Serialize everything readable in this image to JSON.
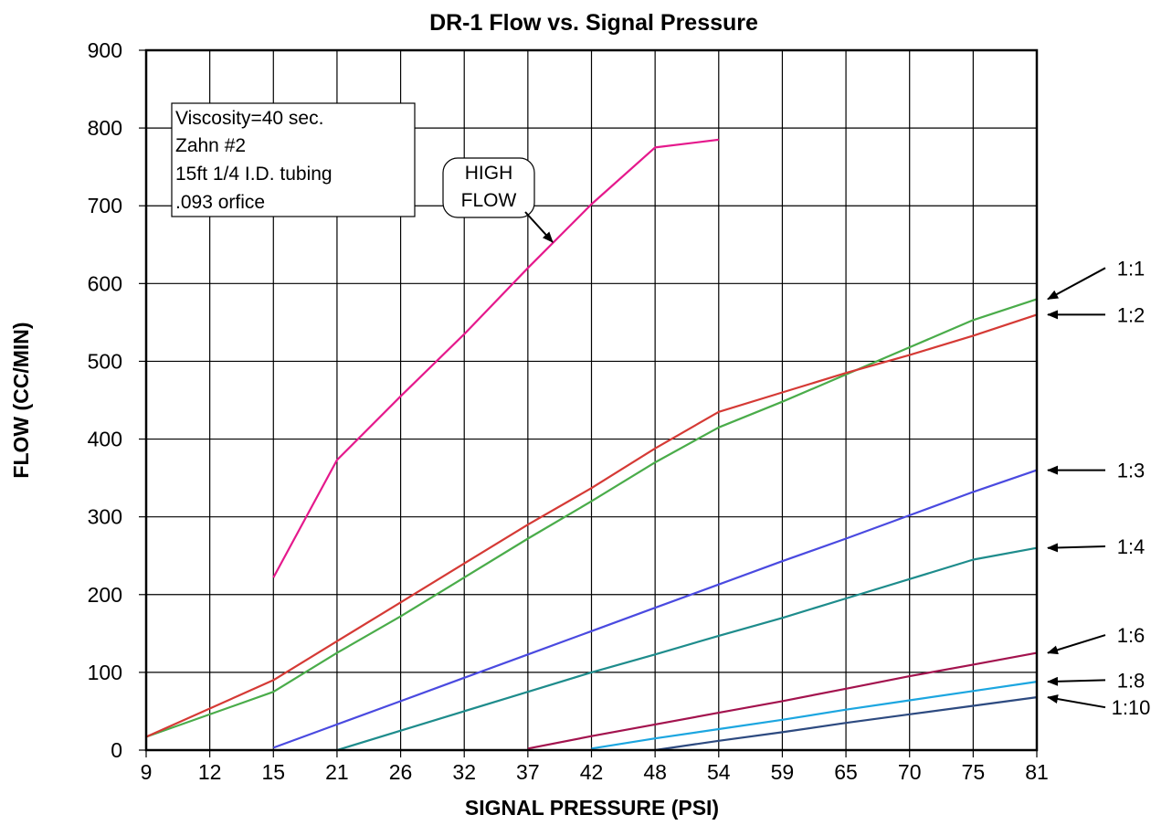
{
  "chart_data": {
    "type": "line",
    "title": "DR-1 Flow vs. Signal Pressure",
    "xlabel": "SIGNAL PRESSURE (PSI)",
    "ylabel": "FLOW (CC/MIN)",
    "x_ticks": [
      "9",
      "12",
      "15",
      "21",
      "26",
      "32",
      "37",
      "42",
      "48",
      "54",
      "59",
      "65",
      "70",
      "75",
      "81"
    ],
    "ylim": [
      0,
      900
    ],
    "y_ticks": [
      "0",
      "100",
      "200",
      "300",
      "400",
      "500",
      "600",
      "700",
      "800",
      "900"
    ],
    "grid": true,
    "annotation_box": [
      "Viscosity=40 sec.",
      "Zahn #2",
      "15ft 1/4 I.D. tubing",
      ".093 orfice"
    ],
    "high_flow_label": [
      "HIGH",
      "FLOW"
    ],
    "series": [
      {
        "name": "HIGH FLOW",
        "color": "#e5198c",
        "points": [
          [
            "15",
            222
          ],
          [
            "21",
            373
          ],
          [
            "26",
            455
          ],
          [
            "32",
            535
          ],
          [
            "37",
            620
          ],
          [
            "42",
            702
          ],
          [
            "48",
            775
          ],
          [
            "54",
            785
          ]
        ]
      },
      {
        "name": "1:1",
        "color": "#4aac4a",
        "points": [
          [
            "9",
            17
          ],
          [
            "15",
            75
          ],
          [
            "21",
            125
          ],
          [
            "26",
            172
          ],
          [
            "32",
            222
          ],
          [
            "37",
            272
          ],
          [
            "42",
            320
          ],
          [
            "48",
            370
          ],
          [
            "54",
            415
          ],
          [
            "59",
            448
          ],
          [
            "65",
            483
          ],
          [
            "70",
            518
          ],
          [
            "75",
            553
          ],
          [
            "81",
            580
          ]
        ]
      },
      {
        "name": "1:2",
        "color": "#d53a35",
        "points": [
          [
            "9",
            17
          ],
          [
            "15",
            90
          ],
          [
            "21",
            140
          ],
          [
            "26",
            190
          ],
          [
            "32",
            240
          ],
          [
            "37",
            290
          ],
          [
            "42",
            337
          ],
          [
            "48",
            388
          ],
          [
            "54",
            435
          ],
          [
            "59",
            460
          ],
          [
            "65",
            485
          ],
          [
            "70",
            508
          ],
          [
            "75",
            533
          ],
          [
            "81",
            560
          ]
        ]
      },
      {
        "name": "1:3",
        "color": "#4a4ae0",
        "points": [
          [
            "15",
            3
          ],
          [
            "21",
            33
          ],
          [
            "26",
            63
          ],
          [
            "32",
            93
          ],
          [
            "37",
            123
          ],
          [
            "42",
            153
          ],
          [
            "48",
            183
          ],
          [
            "54",
            213
          ],
          [
            "59",
            243
          ],
          [
            "65",
            272
          ],
          [
            "70",
            302
          ],
          [
            "75",
            332
          ],
          [
            "81",
            360
          ]
        ]
      },
      {
        "name": "1:4",
        "color": "#1e8c8c",
        "points": [
          [
            "21",
            0
          ],
          [
            "26",
            25
          ],
          [
            "32",
            50
          ],
          [
            "37",
            75
          ],
          [
            "42",
            100
          ],
          [
            "48",
            123
          ],
          [
            "54",
            147
          ],
          [
            "59",
            170
          ],
          [
            "65",
            195
          ],
          [
            "70",
            220
          ],
          [
            "75",
            245
          ],
          [
            "81",
            260
          ]
        ]
      },
      {
        "name": "1:6",
        "color": "#a3134e",
        "points": [
          [
            "37",
            2
          ],
          [
            "42",
            18
          ],
          [
            "48",
            33
          ],
          [
            "54",
            48
          ],
          [
            "59",
            63
          ],
          [
            "65",
            79
          ],
          [
            "70",
            95
          ],
          [
            "75",
            110
          ],
          [
            "81",
            125
          ]
        ]
      },
      {
        "name": "1:8",
        "color": "#1ca6e0",
        "points": [
          [
            "42",
            2
          ],
          [
            "48",
            15
          ],
          [
            "54",
            27
          ],
          [
            "59",
            39
          ],
          [
            "65",
            52
          ],
          [
            "70",
            64
          ],
          [
            "75",
            76
          ],
          [
            "81",
            88
          ]
        ]
      },
      {
        "name": "1:10",
        "color": "#2d4a80",
        "points": [
          [
            "48",
            0
          ],
          [
            "54",
            12
          ],
          [
            "59",
            23
          ],
          [
            "65",
            35
          ],
          [
            "70",
            46
          ],
          [
            "75",
            57
          ],
          [
            "81",
            68
          ]
        ]
      }
    ],
    "series_labels": [
      {
        "name": "1:1",
        "label_y": 620
      },
      {
        "name": "1:2",
        "label_y": 560
      },
      {
        "name": "1:3",
        "label_y": 360
      },
      {
        "name": "1:4",
        "label_y": 262
      },
      {
        "name": "1:6",
        "label_y": 148
      },
      {
        "name": "1:8",
        "label_y": 90
      },
      {
        "name": "1:10",
        "label_y": 55
      }
    ]
  }
}
